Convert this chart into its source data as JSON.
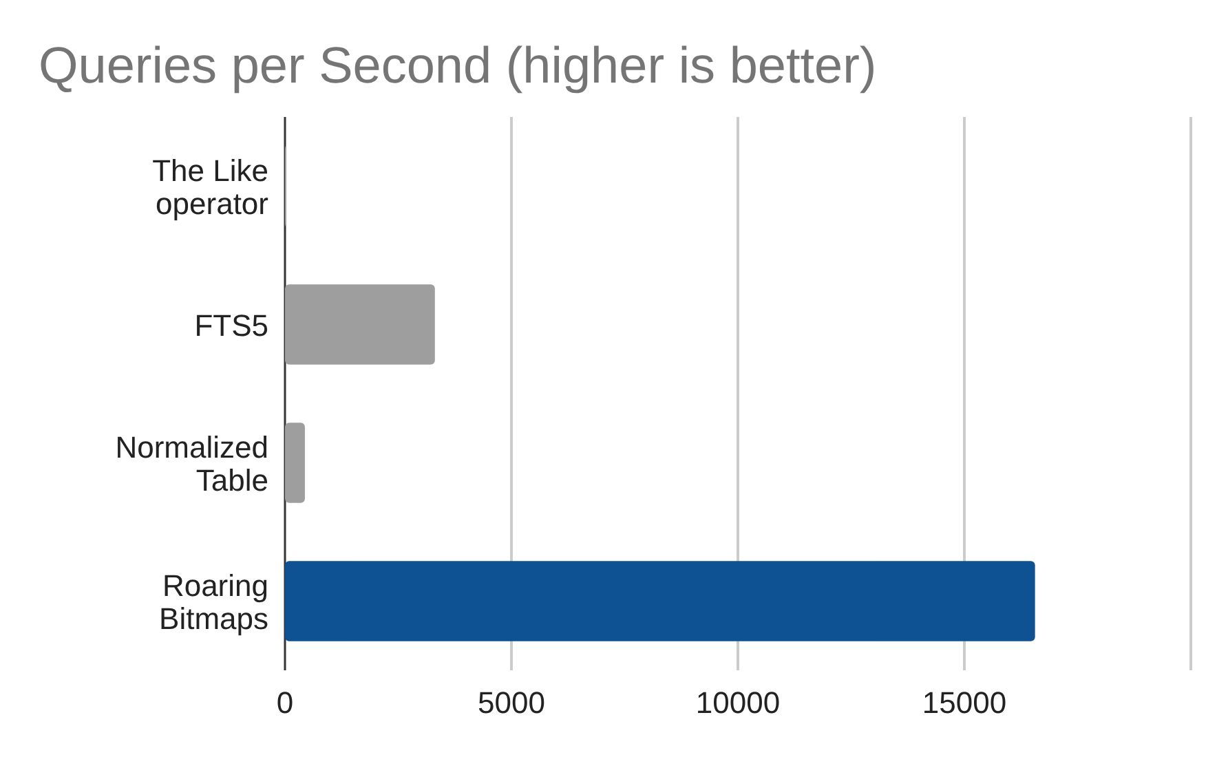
{
  "chart_data": {
    "type": "bar",
    "orientation": "horizontal",
    "title": "Queries per Second (higher is better)",
    "categories": [
      "The Like operator",
      "FTS5",
      "Normalized Table",
      "Roaring Bitmaps"
    ],
    "values": [
      30,
      3310,
      440,
      16560
    ],
    "colors": [
      "#9e9e9e",
      "#9e9e9e",
      "#9e9e9e",
      "#0e5294"
    ],
    "xlim": [
      0,
      20000
    ],
    "xticks": [
      0,
      5000,
      10000,
      15000,
      {
        "value": 20000,
        "label": null
      }
    ],
    "grid": "x"
  }
}
